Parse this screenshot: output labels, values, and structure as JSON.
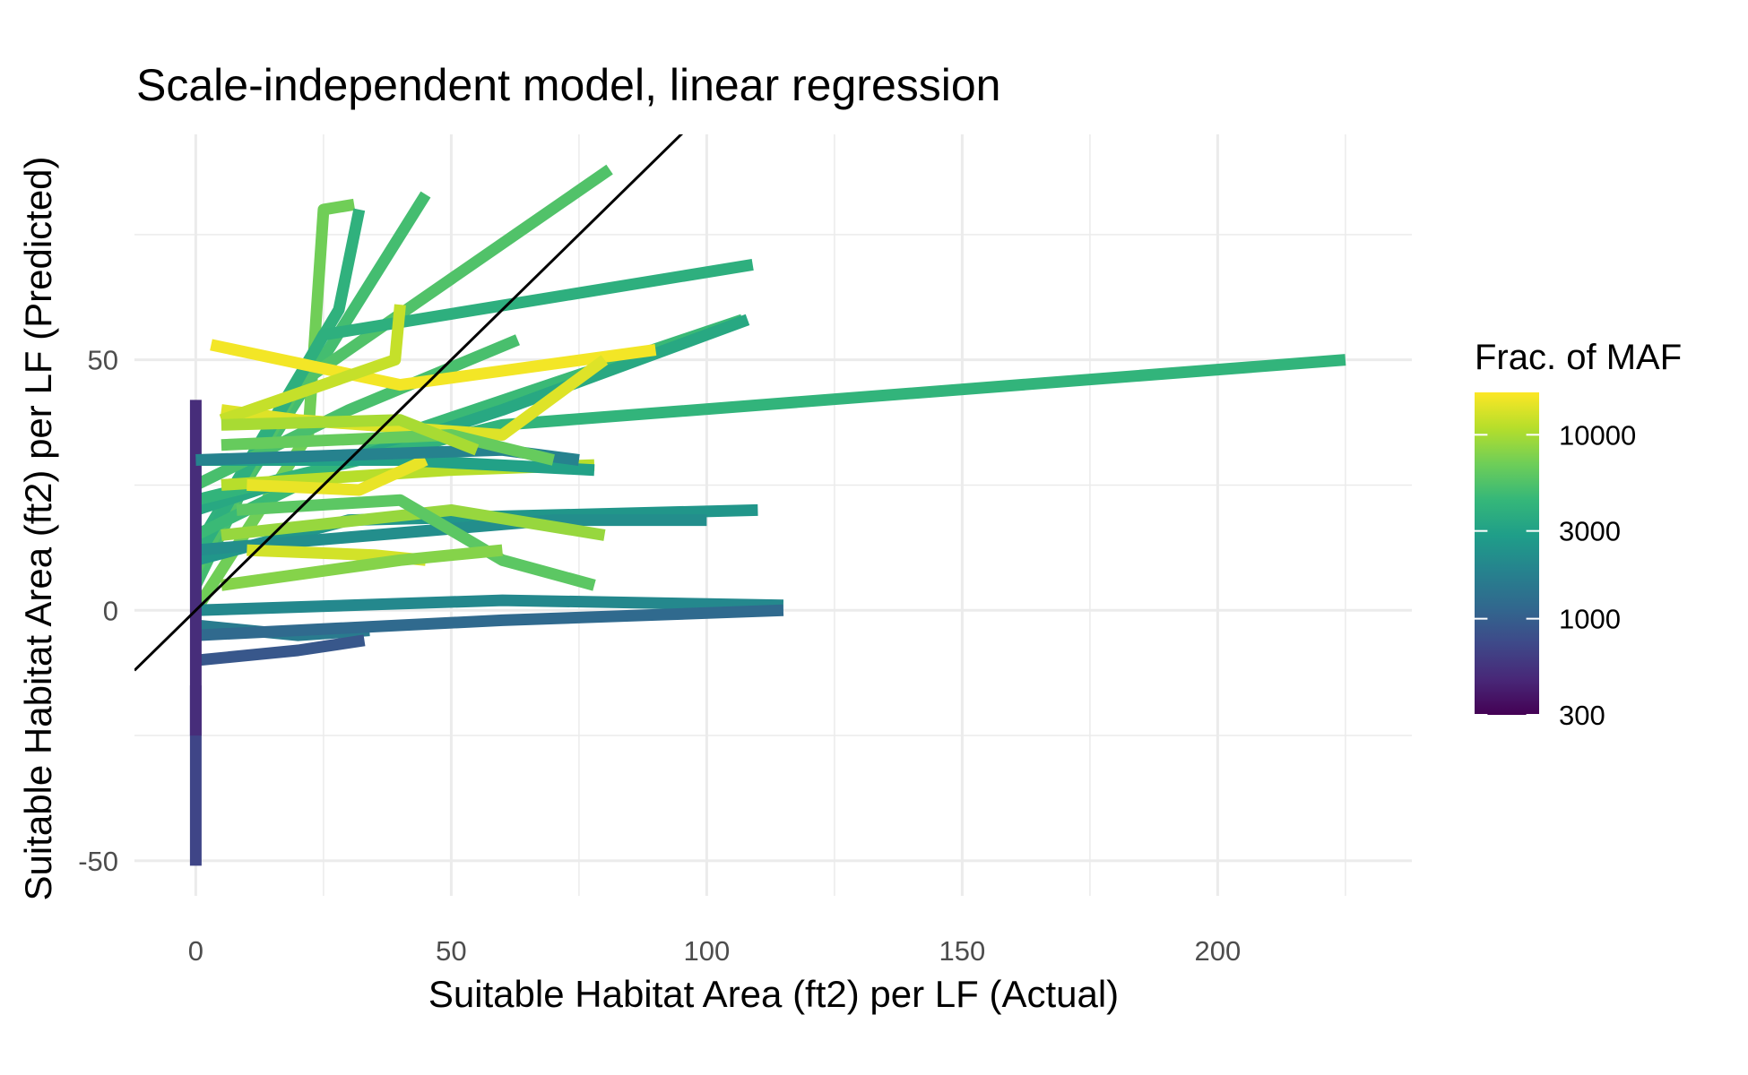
{
  "chart_data": {
    "type": "line",
    "title": "Scale-independent model, linear regression",
    "xlabel": "Suitable Habitat Area (ft2) per LF (Actual)",
    "ylabel": "Suitable Habitat Area (ft2) per LF (Predicted)",
    "xlim": [
      -12,
      238
    ],
    "ylim": [
      -57,
      95
    ],
    "x_ticks": [
      0,
      50,
      100,
      150,
      200
    ],
    "x_tick_labels": [
      "0",
      "50",
      "100",
      "150",
      "200"
    ],
    "y_ticks": [
      -50,
      0,
      50
    ],
    "y_tick_labels": [
      "-50",
      "0",
      "50"
    ],
    "grid": true,
    "reference_line": {
      "type": "identity",
      "slope": 1,
      "intercept": 0,
      "color": "#000000"
    },
    "legend": {
      "title": "Frac. of MAF",
      "placement": "right",
      "scale": "log",
      "range": [
        300,
        17000
      ],
      "ticks": [
        300,
        1000,
        3000,
        10000
      ],
      "tick_labels": [
        "300",
        "1000",
        "3000",
        "10000"
      ],
      "colors": [
        "#440154",
        "#482878",
        "#3e4989",
        "#31688e",
        "#26828e",
        "#1f9e89",
        "#35b779",
        "#6ece58",
        "#b5de2b",
        "#fde725"
      ]
    },
    "series": [
      {
        "maf": 7000,
        "points": [
          [
            0,
            0
          ],
          [
            22,
            35
          ],
          [
            25,
            80
          ],
          [
            31,
            81
          ]
        ]
      },
      {
        "maf": 5000,
        "points": [
          [
            0,
            5
          ],
          [
            10,
            26
          ],
          [
            45,
            83
          ]
        ]
      },
      {
        "maf": 5500,
        "points": [
          [
            0,
            8
          ],
          [
            20,
            45
          ],
          [
            81,
            88
          ]
        ]
      },
      {
        "maf": 4000,
        "points": [
          [
            0,
            12
          ],
          [
            28,
            60
          ],
          [
            32,
            80
          ]
        ]
      },
      {
        "maf": 3800,
        "points": [
          [
            0,
            10
          ],
          [
            25,
            55
          ],
          [
            109,
            69
          ]
        ]
      },
      {
        "maf": 4600,
        "points": [
          [
            0,
            15
          ],
          [
            40,
            35
          ],
          [
            107,
            58
          ]
        ]
      },
      {
        "maf": 3400,
        "points": [
          [
            0,
            20
          ],
          [
            60,
            40
          ],
          [
            108,
            58
          ]
        ]
      },
      {
        "maf": 4200,
        "points": [
          [
            0,
            22
          ],
          [
            60,
            37
          ],
          [
            225,
            50
          ]
        ]
      },
      {
        "maf": 5200,
        "points": [
          [
            0,
            25
          ],
          [
            30,
            40
          ],
          [
            63,
            54
          ]
        ]
      },
      {
        "maf": 16000,
        "points": [
          [
            3,
            53
          ],
          [
            40,
            45
          ],
          [
            90,
            52
          ]
        ]
      },
      {
        "maf": 14000,
        "points": [
          [
            5,
            40
          ],
          [
            20,
            38
          ],
          [
            60,
            35
          ],
          [
            80,
            50
          ]
        ]
      },
      {
        "maf": 12000,
        "points": [
          [
            5,
            38
          ],
          [
            39,
            50
          ],
          [
            40,
            61
          ]
        ]
      },
      {
        "maf": 2000,
        "points": [
          [
            0,
            0
          ],
          [
            60,
            2
          ],
          [
            115,
            1
          ]
        ]
      },
      {
        "maf": 1600,
        "points": [
          [
            0,
            -3
          ],
          [
            20,
            -5
          ],
          [
            34,
            -4
          ]
        ]
      },
      {
        "maf": 2500,
        "points": [
          [
            0,
            10
          ],
          [
            30,
            18
          ],
          [
            110,
            20
          ]
        ]
      },
      {
        "maf": 2200,
        "points": [
          [
            0,
            12
          ],
          [
            70,
            18
          ],
          [
            100,
            18
          ]
        ]
      },
      {
        "maf": 9000,
        "points": [
          [
            5,
            15
          ],
          [
            50,
            20
          ],
          [
            80,
            15
          ]
        ]
      },
      {
        "maf": 11000,
        "points": [
          [
            5,
            25
          ],
          [
            50,
            28
          ],
          [
            78,
            29
          ]
        ]
      },
      {
        "maf": 3000,
        "points": [
          [
            0,
            30
          ],
          [
            40,
            30
          ],
          [
            78,
            28
          ]
        ]
      },
      {
        "maf": 6000,
        "points": [
          [
            8,
            20
          ],
          [
            40,
            22
          ],
          [
            60,
            10
          ],
          [
            78,
            5
          ]
        ]
      },
      {
        "maf": 13000,
        "points": [
          [
            10,
            12
          ],
          [
            35,
            11
          ],
          [
            45,
            10
          ]
        ]
      },
      {
        "maf": 8000,
        "points": [
          [
            5,
            5
          ],
          [
            40,
            10
          ],
          [
            60,
            12
          ]
        ]
      },
      {
        "maf": 15000,
        "points": [
          [
            10,
            25
          ],
          [
            32,
            24
          ],
          [
            45,
            30
          ]
        ]
      },
      {
        "maf": 1200,
        "points": [
          [
            0,
            -5
          ],
          [
            60,
            -2
          ],
          [
            115,
            0
          ]
        ]
      },
      {
        "maf": 900,
        "points": [
          [
            0,
            -10
          ],
          [
            20,
            -8
          ],
          [
            33,
            -6
          ]
        ]
      },
      {
        "maf": 700,
        "points": [
          [
            0,
            -15
          ],
          [
            0,
            -45
          ],
          [
            0,
            -51
          ]
        ]
      },
      {
        "maf": 500,
        "points": [
          [
            0,
            42
          ],
          [
            0,
            10
          ],
          [
            0,
            -25
          ]
        ]
      },
      {
        "maf": 1800,
        "points": [
          [
            0,
            30
          ],
          [
            60,
            32
          ],
          [
            75,
            30
          ]
        ]
      },
      {
        "maf": 6500,
        "points": [
          [
            5,
            33
          ],
          [
            50,
            35
          ],
          [
            70,
            30
          ]
        ]
      },
      {
        "maf": 10000,
        "points": [
          [
            5,
            37
          ],
          [
            40,
            38
          ],
          [
            55,
            32
          ]
        ]
      }
    ]
  }
}
